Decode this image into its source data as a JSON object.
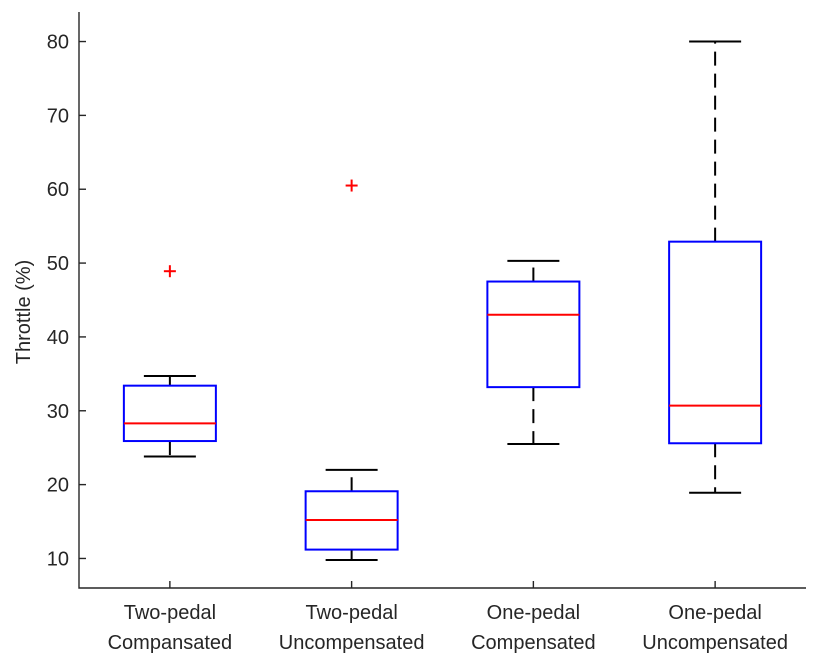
{
  "chart_data": {
    "type": "box",
    "ylabel": "Throttle (%)",
    "xlabel": "",
    "title": "",
    "ylim": [
      6,
      84
    ],
    "yticks": [
      10,
      20,
      30,
      40,
      50,
      60,
      70,
      80
    ],
    "categories": [
      [
        "Two-pedal",
        "Compansated"
      ],
      [
        "Two-pedal",
        "Uncompensated"
      ],
      [
        "One-pedal",
        "Compensated"
      ],
      [
        "One-pedal",
        "Uncompensated"
      ]
    ],
    "boxes": [
      {
        "whisker_low": 23.8,
        "q1": 25.9,
        "median": 28.3,
        "q3": 33.4,
        "whisker_high": 34.7,
        "outliers": [
          48.9
        ]
      },
      {
        "whisker_low": 9.8,
        "q1": 11.2,
        "median": 15.2,
        "q3": 19.1,
        "whisker_high": 22.0,
        "outliers": [
          60.5
        ]
      },
      {
        "whisker_low": 25.5,
        "q1": 33.2,
        "median": 43.0,
        "q3": 47.5,
        "whisker_high": 50.3,
        "outliers": []
      },
      {
        "whisker_low": 18.9,
        "q1": 25.6,
        "median": 30.7,
        "q3": 52.9,
        "whisker_high": 80.0,
        "outliers": []
      }
    ],
    "colors": {
      "box": "#0000ff",
      "median": "#ff0000",
      "whisker": "#000000",
      "outlier": "#ff0000",
      "axis": "#262626"
    },
    "grid": false,
    "legend": "none"
  }
}
